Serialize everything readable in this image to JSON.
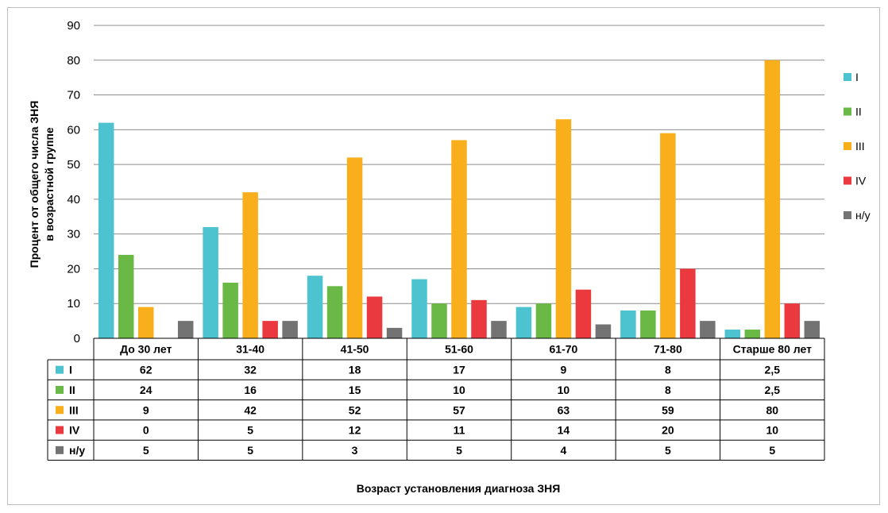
{
  "chart_data": {
    "type": "bar",
    "title": "",
    "xlabel": "Возраст установления диагноза ЗНЯ",
    "ylabel_lines": [
      "Процент от общего числа ЗНЯ",
      "в возрастной группе"
    ],
    "ylim": [
      0,
      90
    ],
    "yticks": [
      0,
      10,
      20,
      30,
      40,
      50,
      60,
      70,
      80,
      90
    ],
    "grid": true,
    "legend_position": "right",
    "categories": [
      "До 30 лет",
      "31-40",
      "41-50",
      "51-60",
      "61-70",
      "71-80",
      "Старше 80 лет"
    ],
    "series": [
      {
        "name": "I",
        "color": "#4dc3d0",
        "values": [
          62,
          32,
          18,
          17,
          9,
          8,
          2.5
        ],
        "labels": [
          "62",
          "32",
          "18",
          "17",
          "9",
          "8",
          "2,5"
        ]
      },
      {
        "name": "II",
        "color": "#6ab845",
        "values": [
          24,
          16,
          15,
          10,
          10,
          8,
          2.5
        ],
        "labels": [
          "24",
          "16",
          "15",
          "10",
          "10",
          "8",
          "2,5"
        ]
      },
      {
        "name": "III",
        "color": "#f9ae1b",
        "values": [
          9,
          42,
          52,
          57,
          63,
          59,
          80
        ],
        "labels": [
          "9",
          "42",
          "52",
          "57",
          "63",
          "59",
          "80"
        ]
      },
      {
        "name": "IV",
        "color": "#ea3a3f",
        "values": [
          0,
          5,
          12,
          11,
          14,
          20,
          10
        ],
        "labels": [
          "0",
          "5",
          "12",
          "11",
          "14",
          "20",
          "10"
        ]
      },
      {
        "name": "н/у",
        "color": "#737373",
        "values": [
          5,
          5,
          3,
          5,
          4,
          5,
          5
        ],
        "labels": [
          "5",
          "5",
          "3",
          "5",
          "4",
          "5",
          "5"
        ]
      }
    ]
  }
}
